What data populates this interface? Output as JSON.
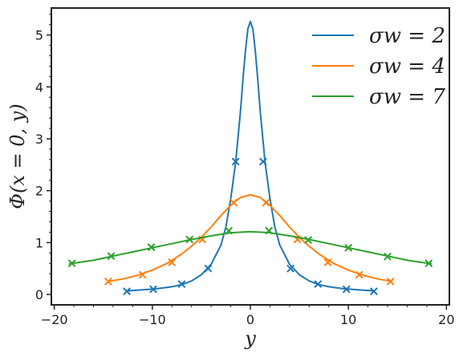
{
  "chart_data": {
    "type": "line",
    "title": "",
    "xlabel": "y",
    "ylabel": "Φ(x = 0, y)",
    "xlim": [
      -20.3,
      20.3
    ],
    "ylim": [
      -0.2,
      5.52
    ],
    "xticks": [
      -20,
      -10,
      0,
      10,
      20
    ],
    "xtick_labels": [
      "−20",
      "−10",
      "0",
      "10",
      "20"
    ],
    "yticks": [
      0,
      1,
      2,
      3,
      4,
      5
    ],
    "ytick_labels": [
      "0",
      "1",
      "2",
      "3",
      "4",
      "5"
    ],
    "grid": false,
    "legend_position": "top-right",
    "series": [
      {
        "name": "σw = 2",
        "color": "#1f77b4",
        "x": [
          -12.5,
          -11,
          -9.5,
          -8,
          -7,
          -6,
          -5,
          -4,
          -3,
          -2.5,
          -2,
          -1.5,
          -1,
          -0.75,
          -0.5,
          -0.25,
          0,
          0.25,
          0.5,
          0.75,
          1,
          1.5,
          2,
          2.5,
          3,
          4,
          5,
          6,
          7,
          8,
          9.5,
          11,
          12.5
        ],
        "y": [
          0.07,
          0.09,
          0.11,
          0.15,
          0.19,
          0.26,
          0.38,
          0.58,
          0.95,
          1.3,
          1.85,
          2.55,
          3.55,
          4.15,
          4.7,
          5.12,
          5.26,
          5.12,
          4.7,
          4.15,
          3.55,
          2.55,
          1.85,
          1.3,
          0.95,
          0.58,
          0.38,
          0.26,
          0.19,
          0.15,
          0.11,
          0.09,
          0.07
        ],
        "markers": {
          "x": [
            -12.6,
            -9.9,
            -7,
            -4.3,
            -1.5,
            1.3,
            4.1,
            6.9,
            9.8,
            12.6
          ],
          "y": [
            0.06,
            0.1,
            0.2,
            0.5,
            2.56,
            2.56,
            0.5,
            0.2,
            0.1,
            0.06
          ]
        }
      },
      {
        "name": "σw = 4",
        "color": "#ff7f0e",
        "x": [
          -14.5,
          -13,
          -11.5,
          -10,
          -8.5,
          -7,
          -6,
          -5,
          -4,
          -3,
          -2,
          -1,
          0,
          1,
          2,
          3,
          4,
          5,
          6,
          7,
          8.5,
          10,
          11.5,
          13,
          14.5
        ],
        "y": [
          0.25,
          0.3,
          0.37,
          0.47,
          0.6,
          0.78,
          0.93,
          1.1,
          1.3,
          1.52,
          1.72,
          1.87,
          1.92,
          1.87,
          1.72,
          1.52,
          1.3,
          1.1,
          0.93,
          0.78,
          0.6,
          0.47,
          0.37,
          0.3,
          0.25
        ],
        "markers": {
          "x": [
            -14.5,
            -11,
            -8,
            -4.9,
            -1.7,
            1.6,
            4.8,
            7.9,
            11.1,
            14.3
          ],
          "y": [
            0.25,
            0.38,
            0.62,
            1.06,
            1.77,
            1.77,
            1.06,
            0.62,
            0.38,
            0.25
          ]
        }
      },
      {
        "name": "σw = 7",
        "color": "#2ca02c",
        "x": [
          -18.5,
          -16,
          -14,
          -12,
          -10,
          -8,
          -6,
          -4,
          -2,
          0,
          2,
          4,
          6,
          8,
          10,
          12,
          14,
          16,
          18.5
        ],
        "y": [
          0.59,
          0.66,
          0.74,
          0.82,
          0.9,
          0.98,
          1.06,
          1.13,
          1.19,
          1.21,
          1.19,
          1.13,
          1.06,
          0.98,
          0.9,
          0.82,
          0.74,
          0.66,
          0.59
        ],
        "markers": {
          "x": [
            -18.2,
            -14.2,
            -10.1,
            -6.2,
            -2.2,
            1.9,
            5.9,
            10,
            14,
            18.2
          ],
          "y": [
            0.6,
            0.74,
            0.91,
            1.06,
            1.23,
            1.23,
            1.05,
            0.9,
            0.73,
            0.6
          ]
        }
      }
    ]
  }
}
